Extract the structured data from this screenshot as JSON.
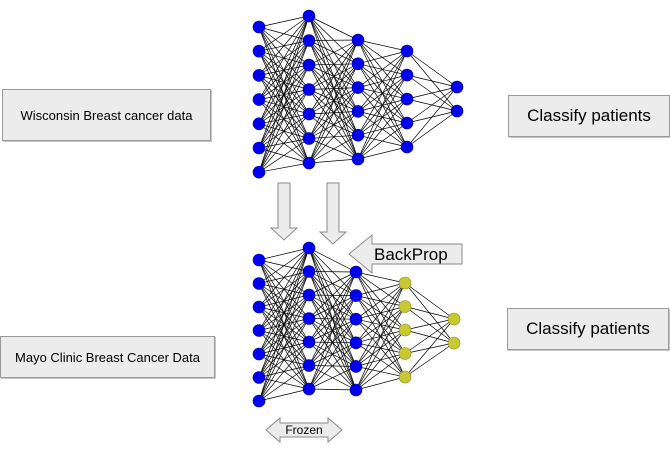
{
  "labels": {
    "source_data": "Wisconsin Breast cancer data",
    "target_data": "Mayo Clinic Breast Cancer Data",
    "classify_top": "Classify patients",
    "classify_bottom": "Classify patients",
    "backprop": "BackProp",
    "frozen": "Frozen"
  },
  "networks": {
    "top": {
      "layer_sizes": [
        7,
        7,
        6,
        5,
        2
      ]
    },
    "bottom": {
      "layer_sizes": [
        7,
        7,
        6,
        5,
        2
      ],
      "frozen_layers": 2
    }
  },
  "colors": {
    "node_blue": "#0000ee",
    "node_olive": "#c8c832",
    "edge": "#000000",
    "box_fill": "#ececec",
    "box_border": "#9a9a9a",
    "arrow_fill": "#ececec",
    "arrow_stroke": "#8a8a8a"
  }
}
